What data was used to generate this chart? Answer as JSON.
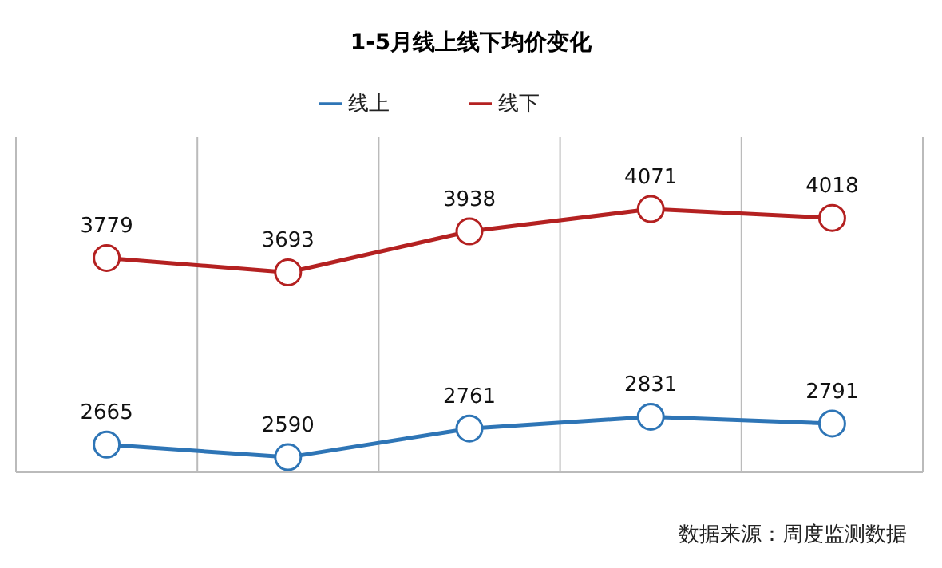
{
  "chart_data": {
    "type": "line",
    "title": "1-5月线上线下均价变化",
    "categories": [
      null,
      null,
      null,
      null,
      null
    ],
    "series": [
      {
        "name": "线上",
        "color": "#2e75b6",
        "values": [
          2665,
          2590,
          2761,
          2831,
          2791
        ]
      },
      {
        "name": "线下",
        "color": "#b42121",
        "values": [
          3779,
          3693,
          3938,
          4071,
          4018
        ]
      }
    ],
    "ylim": [
      2500,
      4500
    ],
    "tick_labels": false,
    "grid": "x",
    "legend": "top",
    "marker": "circle",
    "line_style": "solid",
    "data_labels": true,
    "annotations": [
      "数据来源：周度监测数据"
    ]
  }
}
